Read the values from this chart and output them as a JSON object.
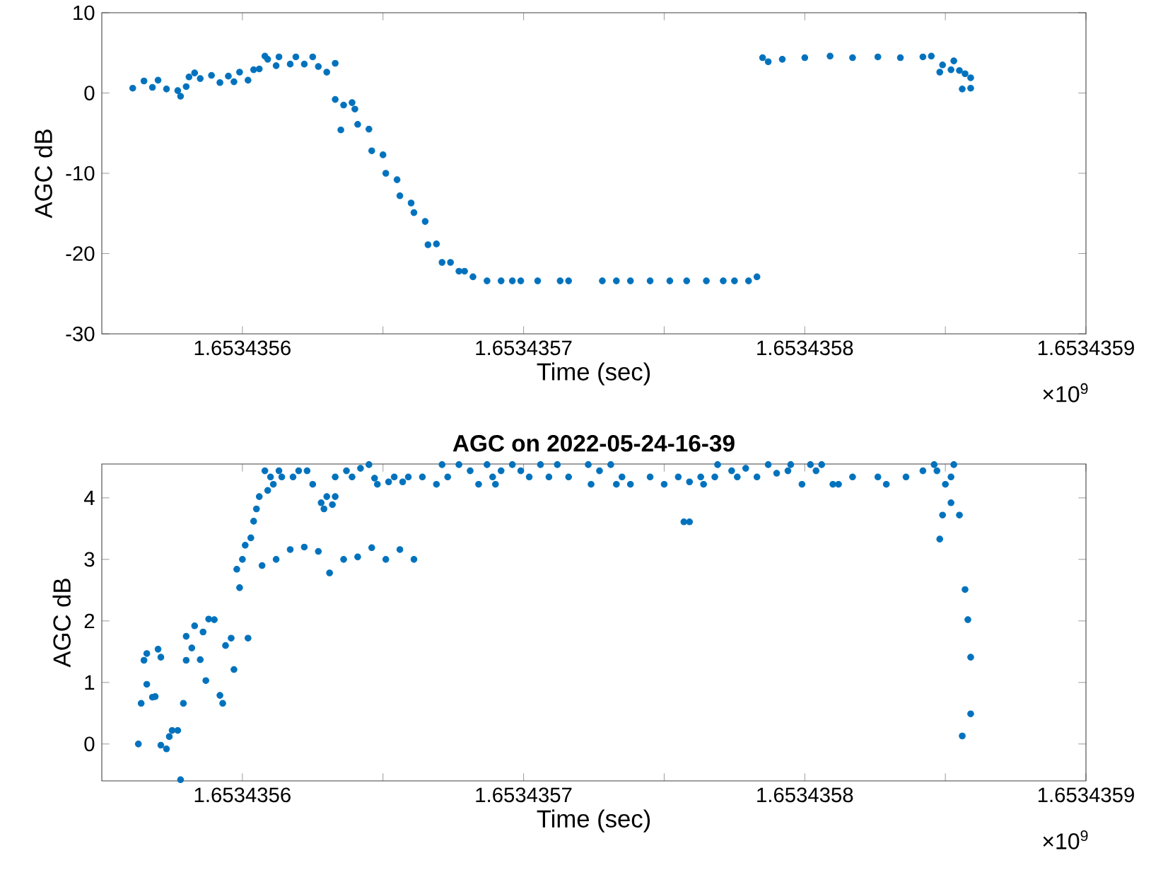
{
  "chart_data": [
    {
      "type": "scatter",
      "xlabel": "Time (sec)",
      "ylabel": "AGC dB",
      "annotations": [
        "×10$^{9}$"
      ],
      "color": "#0072bd",
      "marker": "circle",
      "grid": false,
      "xlim": [
        1.65343555,
        1.6534359
      ],
      "ylim": [
        -30,
        10
      ],
      "xticks": [
        1.6534356,
        {
          "value": 1.65343565,
          "label": null
        },
        1.6534357,
        {
          "value": 1.65343575,
          "label": null
        },
        1.6534358,
        {
          "value": 1.65343585,
          "label": null
        },
        1.6534359
      ],
      "yticks": [
        -30,
        -20,
        -10,
        0,
        10
      ],
      "x": [
        1.653435561,
        1.653435565,
        1.653435568,
        1.65343557,
        1.653435573,
        1.653435577,
        1.653435578,
        1.65343558,
        1.653435581,
        1.653435583,
        1.653435585,
        1.653435589,
        1.653435592,
        1.653435595,
        1.653435597,
        1.653435599,
        1.653435602,
        1.653435604,
        1.653435606,
        1.653435608,
        1.653435609,
        1.653435612,
        1.653435613,
        1.653435617,
        1.653435619,
        1.653435622,
        1.653435625,
        1.653435627,
        1.65343563,
        1.653435633,
        1.653435633,
        1.653435635,
        1.653435636,
        1.653435639,
        1.65343564,
        1.653435641,
        1.653435645,
        1.653435646,
        1.65343565,
        1.653435651,
        1.653435655,
        1.653435656,
        1.65343566,
        1.653435661,
        1.653435665,
        1.653435666,
        1.653435669,
        1.653435671,
        1.653435674,
        1.653435677,
        1.653435679,
        1.653435682,
        1.653435687,
        1.653435692,
        1.653435696,
        1.653435699,
        1.653435705,
        1.653435713,
        1.653435716,
        1.653435728,
        1.653435733,
        1.653435738,
        1.653435745,
        1.653435752,
        1.653435758,
        1.653435765,
        1.653435771,
        1.653435775,
        1.65343578,
        1.653435783,
        1.653435785,
        1.653435787,
        1.653435792,
        1.6534358,
        1.653435809,
        1.653435817,
        1.653435826,
        1.653435834,
        1.653435842,
        1.653435845,
        1.653435848,
        1.653435849,
        1.653435852,
        1.653435853,
        1.653435855,
        1.653435857,
        1.653435859,
        1.653435856,
        1.653435859
      ],
      "values": [
        0.6,
        1.5,
        0.7,
        1.6,
        0.5,
        0.3,
        -0.4,
        0.8,
        2.0,
        2.5,
        1.8,
        2.2,
        1.3,
        2.1,
        1.4,
        2.6,
        1.6,
        2.9,
        3.0,
        4.6,
        4.2,
        3.4,
        4.5,
        3.6,
        4.5,
        3.6,
        4.5,
        3.3,
        2.6,
        3.7,
        -0.8,
        -4.6,
        -1.5,
        -1.2,
        -2.0,
        -3.9,
        -4.5,
        -7.2,
        -7.7,
        -10.0,
        -10.8,
        -12.8,
        -13.7,
        -14.9,
        -16.0,
        -18.9,
        -18.8,
        -21.1,
        -21.1,
        -22.2,
        -22.2,
        -22.9,
        -23.4,
        -23.4,
        -23.4,
        -23.4,
        -23.4,
        -23.4,
        -23.4,
        -23.4,
        -23.4,
        -23.4,
        -23.4,
        -23.4,
        -23.4,
        -23.4,
        -23.4,
        -23.4,
        -23.4,
        -22.9,
        4.4,
        3.9,
        4.2,
        4.4,
        4.6,
        4.4,
        4.5,
        4.4,
        4.5,
        4.6,
        2.6,
        3.5,
        2.9,
        4.0,
        2.8,
        2.4,
        1.9,
        0.5,
        0.6
      ]
    },
    {
      "type": "scatter",
      "title": "AGC on 2022-05-24-16-39",
      "xlabel": "Time (sec)",
      "ylabel": "AGC dB",
      "annotations": [
        "×10$^{9}$"
      ],
      "color": "#0072bd",
      "marker": "circle",
      "grid": false,
      "xlim": [
        1.65343555,
        1.6534359
      ],
      "ylim": [
        -0.6,
        4.55
      ],
      "xticks": [
        1.6534356,
        {
          "value": 1.65343565,
          "label": null
        },
        1.6534357,
        {
          "value": 1.65343575,
          "label": null
        },
        1.6534358,
        {
          "value": 1.65343585,
          "label": null
        },
        1.6534359
      ],
      "yticks": [
        0,
        1,
        2,
        3,
        4
      ],
      "x": [
        1.653435563,
        1.653435564,
        1.653435565,
        1.653435566,
        1.653435566,
        1.653435568,
        1.653435569,
        1.65343557,
        1.653435571,
        1.653435571,
        1.653435573,
        1.653435574,
        1.653435575,
        1.653435577,
        1.653435578,
        1.653435579,
        1.65343558,
        1.65343558,
        1.653435582,
        1.653435583,
        1.653435585,
        1.653435586,
        1.653435587,
        1.653435588,
        1.65343559,
        1.653435592,
        1.653435593,
        1.653435594,
        1.653435596,
        1.653435597,
        1.653435598,
        1.653435599,
        1.6534356,
        1.653435601,
        1.653435602,
        1.653435603,
        1.653435604,
        1.653435605,
        1.653435606,
        1.653435607,
        1.653435608,
        1.653435609,
        1.65343561,
        1.653435611,
        1.653435612,
        1.653435613,
        1.653435614,
        1.653435617,
        1.653435618,
        1.65343562,
        1.653435622,
        1.653435623,
        1.653435625,
        1.653435627,
        1.653435628,
        1.653435629,
        1.65343563,
        1.653435631,
        1.653435632,
        1.653435633,
        1.653435633,
        1.653435636,
        1.653435637,
        1.653435639,
        1.653435641,
        1.653435642,
        1.653435645,
        1.653435646,
        1.653435647,
        1.653435648,
        1.653435651,
        1.653435652,
        1.653435654,
        1.653435656,
        1.653435657,
        1.653435659,
        1.653435661,
        1.653435664,
        1.653435669,
        1.653435671,
        1.653435673,
        1.653435677,
        1.653435681,
        1.653435684,
        1.653435687,
        1.653435689,
        1.65343569,
        1.653435692,
        1.653435696,
        1.653435699,
        1.653435702,
        1.653435706,
        1.653435709,
        1.653435712,
        1.653435716,
        1.653435723,
        1.653435724,
        1.653435727,
        1.653435731,
        1.653435733,
        1.653435735,
        1.653435738,
        1.653435745,
        1.65343575,
        1.653435755,
        1.653435757,
        1.653435759,
        1.653435759,
        1.653435763,
        1.653435764,
        1.653435768,
        1.653435769,
        1.653435774,
        1.653435776,
        1.653435779,
        1.653435783,
        1.653435787,
        1.65343579,
        1.653435794,
        1.653435795,
        1.653435799,
        1.653435802,
        1.653435804,
        1.653435806,
        1.65343581,
        1.653435812,
        1.653435817,
        1.653435826,
        1.653435829,
        1.653435836,
        1.653435842,
        1.653435846,
        1.653435847,
        1.653435848,
        1.653435849,
        1.65343585,
        1.653435852,
        1.653435852,
        1.653435853,
        1.653435855,
        1.653435856,
        1.653435857,
        1.653435858,
        1.653435859,
        1.653435859
      ],
      "values": [
        0.0,
        0.66,
        1.36,
        1.47,
        0.97,
        0.76,
        0.77,
        1.54,
        1.41,
        -0.02,
        -0.08,
        0.12,
        0.22,
        0.22,
        -0.58,
        0.66,
        1.36,
        1.75,
        1.56,
        1.92,
        1.37,
        1.82,
        1.03,
        2.03,
        2.02,
        0.79,
        0.66,
        1.6,
        1.72,
        1.21,
        2.84,
        2.54,
        3.0,
        3.23,
        1.72,
        3.35,
        3.62,
        3.82,
        4.02,
        2.9,
        4.44,
        4.12,
        4.34,
        4.22,
        3.0,
        4.44,
        4.34,
        3.16,
        4.34,
        4.44,
        3.2,
        4.44,
        4.22,
        3.13,
        3.92,
        3.82,
        4.02,
        2.78,
        3.89,
        4.02,
        4.34,
        3.0,
        4.44,
        4.34,
        3.04,
        4.48,
        4.54,
        3.19,
        4.32,
        4.22,
        3.0,
        4.26,
        4.34,
        3.16,
        4.26,
        4.34,
        3.0,
        4.34,
        4.22,
        4.54,
        4.34,
        4.54,
        4.44,
        4.22,
        4.54,
        4.34,
        4.22,
        4.44,
        4.54,
        4.44,
        4.34,
        4.54,
        4.34,
        4.54,
        4.34,
        4.54,
        4.22,
        4.44,
        4.54,
        4.22,
        4.34,
        4.22,
        4.34,
        4.22,
        4.34,
        3.61,
        3.61,
        4.26,
        4.34,
        4.22,
        4.34,
        4.54,
        4.44,
        4.34,
        4.48,
        4.34,
        4.54,
        4.4,
        4.44,
        4.54,
        4.22,
        4.54,
        4.44,
        4.54,
        4.22,
        4.22,
        4.34,
        4.34,
        4.22,
        4.34,
        4.44,
        4.54,
        4.44,
        3.33,
        3.72,
        4.22,
        3.92,
        4.34,
        4.54,
        3.72,
        0.13,
        2.51,
        2.02,
        1.41,
        0.49
      ]
    }
  ]
}
